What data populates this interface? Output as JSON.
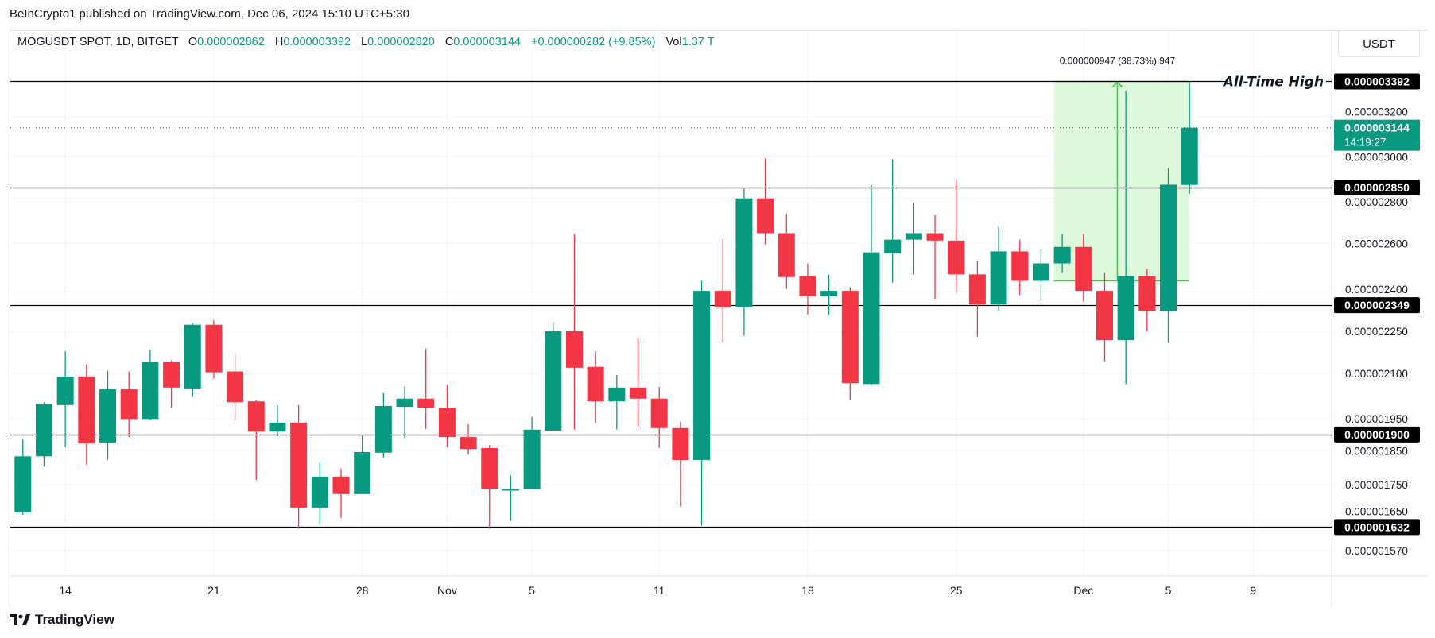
{
  "publisher_line": "BeInCrypto1 published on TradingView.com, Dec 06, 2024 15:10 UTC+5:30",
  "legend": {
    "symbol": "MOGUSDT SPOT, 1D, BITGET",
    "o_label": "O",
    "open": "0.000002862",
    "h_label": "H",
    "high": "0.000003392",
    "l_label": "L",
    "low": "0.000002820",
    "c_label": "C",
    "close": "0.000003144",
    "change": "+0.000000282 (+9.85%)",
    "vol_label": "Vol",
    "volume": "1.37 T"
  },
  "currency_button": "USDT",
  "footer_brand": "TradingView",
  "colors": {
    "up": "#089981",
    "down": "#f23645",
    "level": "#000000",
    "measure_fill": "#dcf9dc",
    "measure_line": "#22dd22",
    "grid": "#f0f3fa"
  },
  "chart_data": {
    "type": "candlestick",
    "title": "MOGUSDT SPOT, 1D, BITGET",
    "value_scale": 1e-09,
    "yscale": "log",
    "ylim": [
      1506,
      3618
    ],
    "x_index_range": [
      0,
      61.7
    ],
    "dates": [
      "Oct 12",
      "Oct 13",
      "Oct 14",
      "Oct 15",
      "Oct 16",
      "Oct 17",
      "Oct 18",
      "Oct 19",
      "Oct 20",
      "Oct 21",
      "Oct 22",
      "Oct 23",
      "Oct 24",
      "Oct 25",
      "Oct 26",
      "Oct 27",
      "Oct 28",
      "Oct 29",
      "Oct 30",
      "Oct 31",
      "Nov 1",
      "Nov 2",
      "Nov 3",
      "Nov 4",
      "Nov 5",
      "Nov 6",
      "Nov 7",
      "Nov 8",
      "Nov 9",
      "Nov 10",
      "Nov 11",
      "Nov 12",
      "Nov 13",
      "Nov 14",
      "Nov 15",
      "Nov 16",
      "Nov 17",
      "Nov 18",
      "Nov 19",
      "Nov 20",
      "Nov 21",
      "Nov 22",
      "Nov 23",
      "Nov 24",
      "Nov 25",
      "Nov 26",
      "Nov 27",
      "Nov 28",
      "Nov 29",
      "Nov 30",
      "Dec 1",
      "Dec 2",
      "Dec 3",
      "Dec 4",
      "Dec 5",
      "Dec 6"
    ],
    "open": [
      1672,
      1833,
      1994,
      2089,
      1875,
      2046,
      1949,
      2139,
      2049,
      2275,
      2107,
      2006,
      1909,
      1937,
      1685,
      1773,
      1723,
      1844,
      1988,
      2015,
      1985,
      1892,
      1858,
      1733,
      1736,
      1912,
      2251,
      2123,
      2006,
      2052,
      2015,
      1920,
      1822,
      2405,
      2341,
      2799,
      2644,
      2464,
      2384,
      2405,
      2064,
      2558,
      2616,
      2644,
      2612,
      2471,
      2352,
      2566,
      2445,
      2516,
      2585,
      2405,
      2218,
      2464,
      2327,
      2862
    ],
    "high": [
      1886,
      2003,
      2178,
      2132,
      2110,
      2107,
      2185,
      2146,
      2282,
      2292,
      2172,
      2009,
      1994,
      1994,
      1816,
      1797,
      1897,
      2033,
      2055,
      2188,
      2061,
      1932,
      1867,
      1776,
      1955,
      2285,
      2640,
      2178,
      2095,
      2227,
      2055,
      1940,
      2446,
      2620,
      2846,
      2990,
      2729,
      2516,
      2471,
      2420,
      2863,
      2985,
      2778,
      2725,
      2884,
      2527,
      2672,
      2616,
      2578,
      2640,
      2640,
      2479,
      3341,
      2494,
      2942,
      3392
    ],
    "low": [
      1665,
      1803,
      1861,
      1808,
      1822,
      1892,
      1946,
      1985,
      2021,
      2083,
      1946,
      1763,
      1894,
      1628,
      1638,
      1657,
      1723,
      1830,
      1889,
      1917,
      1861,
      1838,
      1628,
      1650,
      1736,
      1912,
      1915,
      1935,
      1915,
      1923,
      1858,
      1688,
      1636,
      2211,
      2234,
      2596,
      2413,
      2313,
      2313,
      2009,
      2061,
      2438,
      2471,
      2373,
      2398,
      2231,
      2327,
      2388,
      2356,
      2479,
      2363,
      2142,
      2064,
      2251,
      2208,
      2820
    ],
    "close": [
      1833,
      1997,
      2089,
      1872,
      2046,
      1949,
      2139,
      2052,
      2275,
      2104,
      2003,
      1909,
      1937,
      1685,
      1773,
      1723,
      1846,
      1991,
      2015,
      1985,
      1892,
      1855,
      1736,
      1736,
      1915,
      2251,
      2120,
      2006,
      2052,
      2015,
      1920,
      1822,
      2405,
      2341,
      2799,
      2644,
      2460,
      2384,
      2405,
      2067,
      2562,
      2616,
      2644,
      2612,
      2471,
      2352,
      2566,
      2445,
      2516,
      2585,
      2405,
      2218,
      2464,
      2327,
      2863,
      3144
    ],
    "y_ticks": [
      {
        "value": 3200,
        "label": "0.000003200"
      },
      {
        "value": 3000,
        "label": "0.000003000"
      },
      {
        "value": 2800,
        "label": "0.000002800"
      },
      {
        "value": 2600,
        "label": "0.000002600"
      },
      {
        "value": 2400,
        "label": "0.000002400"
      },
      {
        "value": 2250,
        "label": "0.000002250"
      },
      {
        "value": 2100,
        "label": "0.000002100"
      },
      {
        "value": 1950,
        "label": "0.000001950"
      },
      {
        "value": 1850,
        "label": "0.000001850"
      },
      {
        "value": 1750,
        "label": "0.000001750"
      },
      {
        "value": 1650,
        "label": "0.000001650"
      },
      {
        "value": 1570,
        "label": "0.000001570"
      }
    ],
    "x_ticks": [
      {
        "index": 2,
        "label": "14"
      },
      {
        "index": 9,
        "label": "21"
      },
      {
        "index": 16,
        "label": "28"
      },
      {
        "index": 20,
        "label": "Nov"
      },
      {
        "index": 24,
        "label": "5"
      },
      {
        "index": 30,
        "label": "11"
      },
      {
        "index": 37,
        "label": "18"
      },
      {
        "index": 44,
        "label": "25"
      },
      {
        "index": 50,
        "label": "Dec"
      },
      {
        "index": 54,
        "label": "5"
      },
      {
        "index": 58,
        "label": "9"
      }
    ],
    "levels": [
      {
        "value": 3392,
        "label": "0.000003392",
        "annotation": "All-Time High"
      },
      {
        "value": 2850,
        "label": "0.000002850"
      },
      {
        "value": 2349,
        "label": "0.000002349"
      },
      {
        "value": 1900,
        "label": "0.000001900"
      },
      {
        "value": 1632,
        "label": "0.000001632"
      }
    ],
    "last_price": {
      "value": 3144,
      "label": "0.000003144",
      "countdown": "14:19:27"
    },
    "measurement": {
      "from_index": 48.6,
      "to_index": 55,
      "arrow_index": 51.6,
      "low": 2445,
      "high": 3392,
      "label": "0.000000947 (38.73%) 947"
    }
  }
}
